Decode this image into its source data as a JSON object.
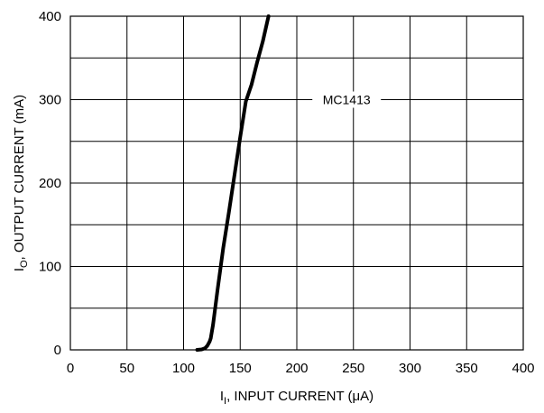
{
  "chart_data": {
    "type": "line",
    "xlim": [
      0,
      400
    ],
    "ylim": [
      0,
      400
    ],
    "x_ticks": [
      0,
      50,
      100,
      150,
      200,
      250,
      300,
      350,
      400
    ],
    "y_ticks": [
      0,
      100,
      200,
      300,
      400
    ],
    "y_minor_gridlines": [
      50,
      150,
      250,
      350
    ],
    "grid": true,
    "xlabel_main": "I",
    "xlabel_sub": "I",
    "xlabel_rest": ", INPUT CURRENT (μA)",
    "ylabel_main": "I",
    "ylabel_sub": "O",
    "ylabel_rest": ", OUTPUT CURRENT (mA)",
    "series": [
      {
        "name": "MC1413",
        "x": [
          112,
          116,
          119,
          121,
          123,
          124,
          126,
          130,
          135,
          140,
          145,
          150,
          155,
          160,
          165,
          170,
          175
        ],
        "y": [
          0,
          0.5,
          2,
          5,
          10,
          14,
          30,
          72,
          122,
          165,
          210,
          255,
          298,
          318,
          345,
          370,
          400
        ]
      }
    ],
    "annotation": {
      "text": "MC1413",
      "series": "MC1413"
    }
  }
}
